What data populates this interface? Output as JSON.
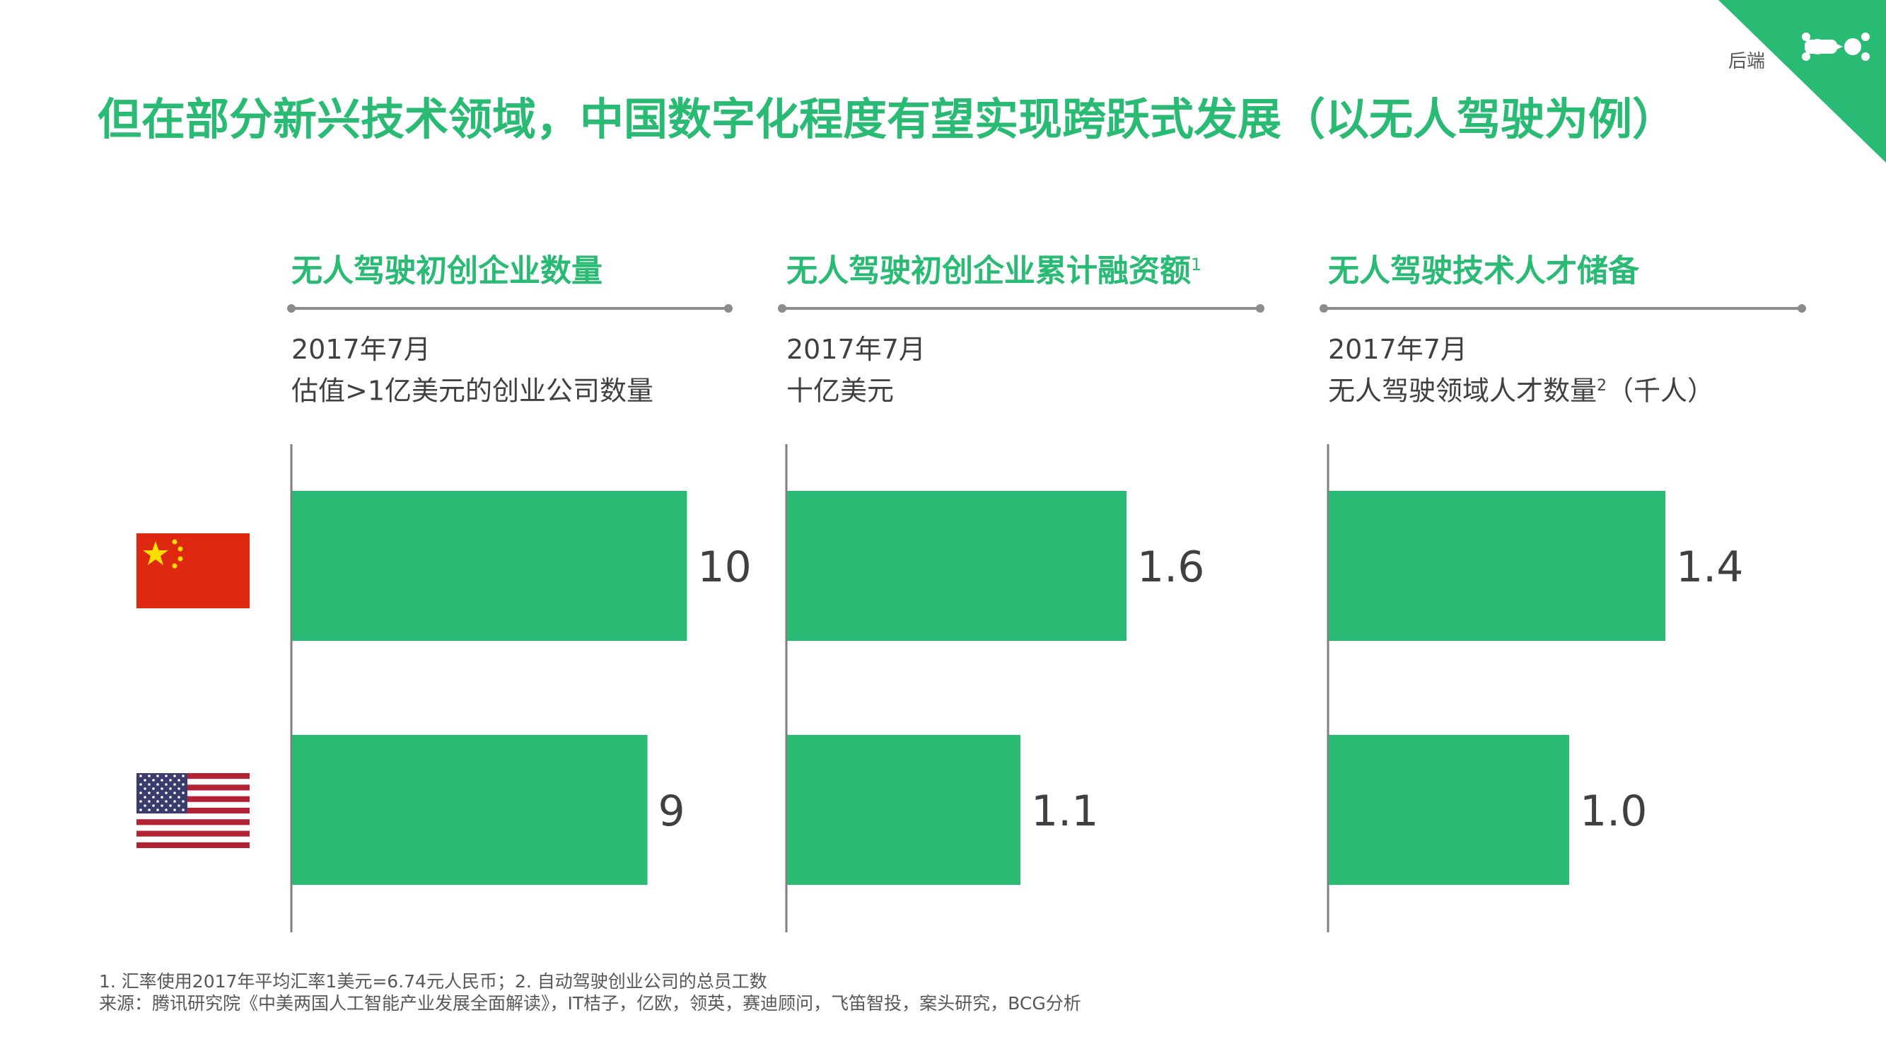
{
  "title": "但在部分新兴技术领域，中国数字化程度有望实现跨跃式发展（以无人驾驶为例）",
  "corner_label": "后端",
  "colors": {
    "accent": "#29ba74",
    "bar": "#29ba74",
    "axis": "#7f7f7f",
    "text": "#404040"
  },
  "flags": [
    {
      "name": "china-flag-icon",
      "colors": [
        "#de2910",
        "#ffde00"
      ]
    },
    {
      "name": "usa-flag-icon",
      "colors": [
        "#b22234",
        "#ffffff",
        "#3c3b6e"
      ]
    }
  ],
  "panels": [
    {
      "heading": "无人驾驶初创企业数量",
      "heading_note": "",
      "date": "2017年7月",
      "unit_label": "估值>1亿美元的创业公司数量",
      "unit_note": "",
      "unit_suffix": ""
    },
    {
      "heading": "无人驾驶初创企业累计融资额",
      "heading_note": "1",
      "date": "2017年7月",
      "unit_label": "十亿美元",
      "unit_note": "",
      "unit_suffix": ""
    },
    {
      "heading": "无人驾驶技术人才储备",
      "heading_note": "",
      "date": "2017年7月",
      "unit_label": "无人驾驶领域人才数量",
      "unit_note": "2",
      "unit_suffix": "（千人）"
    }
  ],
  "chart_data": [
    {
      "type": "bar",
      "orientation": "horizontal",
      "categories": [
        "China",
        "USA"
      ],
      "values": [
        10,
        9
      ],
      "value_labels": [
        "10",
        "9"
      ],
      "xlim": [
        0,
        13.7
      ]
    },
    {
      "type": "bar",
      "orientation": "horizontal",
      "categories": [
        "China",
        "USA"
      ],
      "values": [
        1.6,
        1.1
      ],
      "value_labels": [
        "1.6",
        "1.1"
      ],
      "xlim": [
        0,
        2.55
      ]
    },
    {
      "type": "bar",
      "orientation": "horizontal",
      "categories": [
        "China",
        "USA"
      ],
      "values": [
        1.4,
        1.0
      ],
      "value_labels": [
        "1.4",
        "1.0"
      ],
      "xlim": [
        0,
        2.25
      ]
    }
  ],
  "footnotes": {
    "line1": "1. 汇率使用2017年平均汇率1美元=6.74元人民币；2. 自动驾驶创业公司的总员工数",
    "line2": "来源：腾讯研究院《中美两国人工智能产业发展全面解读》，IT桔子，亿欧，领英，赛迪顾问，飞笛智投，案头研究，BCG分析"
  }
}
